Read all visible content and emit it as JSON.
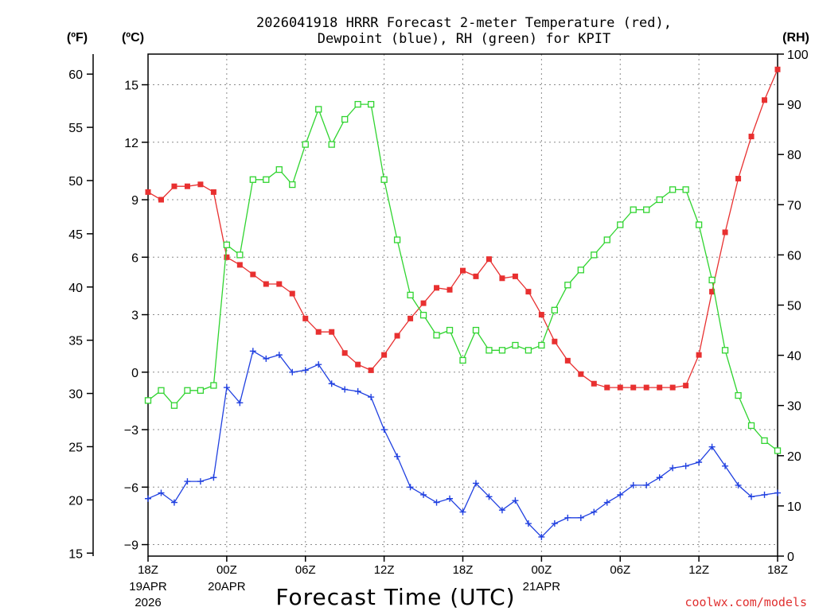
{
  "chart_data": {
    "type": "line",
    "title_line1": "2026041918 HRRR Forecast 2-meter Temperature (red),",
    "title_line2": "Dewpoint (blue), RH (green) for KPIT",
    "units": {
      "fahrenheit": "(ºF)",
      "celsius": "(ºC)",
      "rh": "(RH)"
    },
    "xlabel": "Forecast Time (UTC)",
    "credit": "coolwx.com/models",
    "x_range_hours": [
      0,
      48
    ],
    "x_ticks": [
      {
        "hour": 0,
        "label": "18Z",
        "sub1": "19APR",
        "sub2": "2026"
      },
      {
        "hour": 6,
        "label": "00Z",
        "sub1": "20APR",
        "sub2": ""
      },
      {
        "hour": 12,
        "label": "06Z",
        "sub1": "",
        "sub2": ""
      },
      {
        "hour": 18,
        "label": "12Z",
        "sub1": "",
        "sub2": ""
      },
      {
        "hour": 24,
        "label": "18Z",
        "sub1": "",
        "sub2": ""
      },
      {
        "hour": 30,
        "label": "00Z",
        "sub1": "21APR",
        "sub2": ""
      },
      {
        "hour": 36,
        "label": "06Z",
        "sub1": "",
        "sub2": ""
      },
      {
        "hour": 42,
        "label": "12Z",
        "sub1": "",
        "sub2": ""
      },
      {
        "hour": 48,
        "label": "18Z",
        "sub1": "",
        "sub2": ""
      }
    ],
    "celsius_axis": {
      "range": [
        -9.6,
        16.6
      ],
      "ticks": [
        -9,
        -6,
        -3,
        0,
        3,
        6,
        9,
        12,
        15
      ]
    },
    "fahrenheit_axis": {
      "ticks": [
        15,
        20,
        25,
        30,
        35,
        40,
        45,
        50,
        55,
        60
      ]
    },
    "rh_axis": {
      "range": [
        0,
        100
      ],
      "ticks": [
        0,
        10,
        20,
        30,
        40,
        50,
        60,
        70,
        80,
        90,
        100
      ]
    },
    "series": [
      {
        "name": "Temperature",
        "units": "C",
        "color": "#e83030",
        "marker": "filled-square",
        "values": [
          9.4,
          9.0,
          9.7,
          9.7,
          9.8,
          9.4,
          6.0,
          5.6,
          5.1,
          4.6,
          4.6,
          4.1,
          2.8,
          2.1,
          2.1,
          1.0,
          0.4,
          0.1,
          0.9,
          1.9,
          2.8,
          3.6,
          4.4,
          4.3,
          5.3,
          5.0,
          5.9,
          4.9,
          5.0,
          4.2,
          3.0,
          1.6,
          0.6,
          -0.1,
          -0.6,
          -0.8,
          -0.8,
          -0.8,
          -0.8,
          -0.8,
          -0.8,
          -0.7,
          0.9,
          4.2,
          7.3,
          10.1,
          12.3,
          14.2,
          15.8
        ]
      },
      {
        "name": "Dewpoint",
        "units": "C",
        "color": "#2040e0",
        "marker": "plus",
        "values": [
          -6.6,
          -6.3,
          -6.8,
          -5.7,
          -5.7,
          -5.5,
          -0.8,
          -1.6,
          1.1,
          0.7,
          0.9,
          0.0,
          0.1,
          0.4,
          -0.6,
          -0.9,
          -1.0,
          -1.3,
          -3.0,
          -4.4,
          -6.0,
          -6.4,
          -6.8,
          -6.6,
          -7.3,
          -5.8,
          -6.5,
          -7.2,
          -6.7,
          -7.9,
          -8.6,
          -7.9,
          -7.6,
          -7.6,
          -7.3,
          -6.8,
          -6.4,
          -5.9,
          -5.9,
          -5.5,
          -5.0,
          -4.9,
          -4.7,
          -3.9,
          -4.9,
          -5.9,
          -6.5,
          -6.4,
          -6.3
        ]
      },
      {
        "name": "RH",
        "units": "%",
        "color": "#30d430",
        "marker": "open-square",
        "values": [
          31,
          33,
          30,
          33,
          33,
          34,
          62,
          60,
          75,
          75,
          77,
          74,
          82,
          89,
          82,
          87,
          90,
          90,
          75,
          63,
          52,
          48,
          44,
          45,
          39,
          45,
          41,
          41,
          42,
          41,
          42,
          49,
          54,
          57,
          60,
          63,
          66,
          69,
          69,
          71,
          73,
          73,
          66,
          55,
          41,
          32,
          26,
          23,
          21
        ]
      }
    ]
  }
}
